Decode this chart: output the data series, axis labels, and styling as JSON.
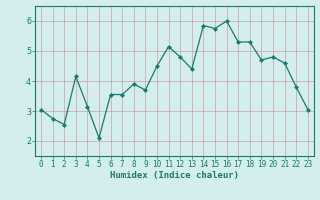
{
  "title": "",
  "xlabel": "Humidex (Indice chaleur)",
  "x_values": [
    0,
    1,
    2,
    3,
    4,
    5,
    6,
    7,
    8,
    9,
    10,
    11,
    12,
    13,
    14,
    15,
    16,
    17,
    18,
    19,
    20,
    21,
    22,
    23
  ],
  "y_values": [
    3.05,
    2.75,
    2.55,
    4.15,
    3.15,
    2.1,
    3.55,
    3.55,
    3.9,
    3.7,
    4.5,
    5.15,
    4.8,
    4.4,
    5.85,
    5.75,
    6.0,
    5.3,
    5.3,
    4.7,
    4.8,
    4.6,
    3.8,
    3.05
  ],
  "line_color": "#1a7a6e",
  "marker_color": "#1a7a6e",
  "bg_color": "#d4eded",
  "grid_color_v": "#c8a0a8",
  "grid_color_h": "#c8a0a8",
  "axis_color": "#1a7a6e",
  "tick_color": "#1a7a6e",
  "ylim": [
    1.5,
    6.5
  ],
  "xlim": [
    -0.5,
    23.5
  ],
  "yticks": [
    2,
    3,
    4,
    5,
    6
  ],
  "xticks": [
    0,
    1,
    2,
    3,
    4,
    5,
    6,
    7,
    8,
    9,
    10,
    11,
    12,
    13,
    14,
    15,
    16,
    17,
    18,
    19,
    20,
    21,
    22,
    23
  ],
  "xlabel_fontsize": 6.5,
  "tick_fontsize": 5.5
}
